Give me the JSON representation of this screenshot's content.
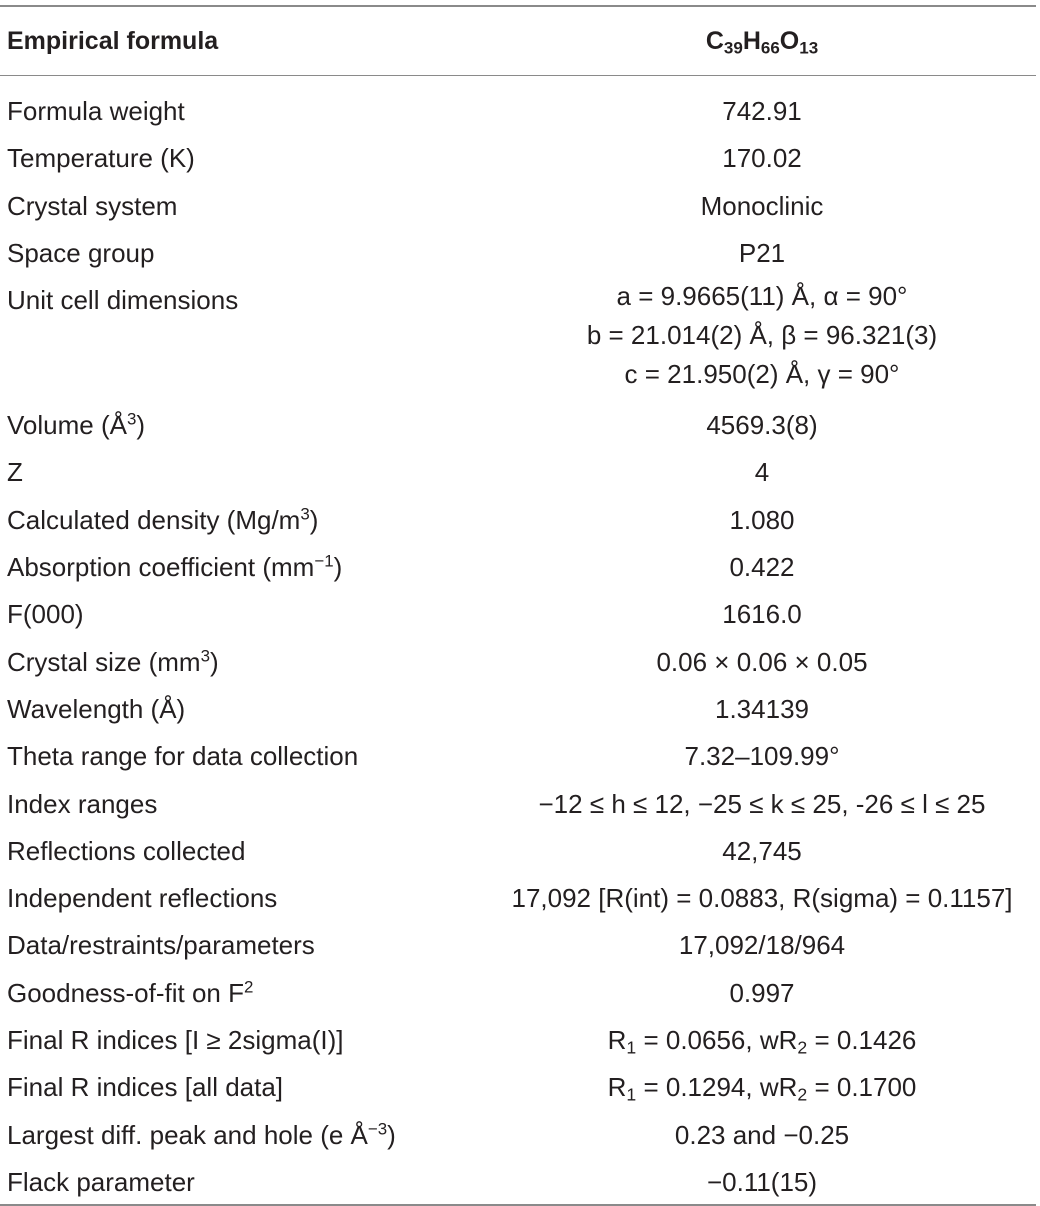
{
  "header": {
    "label": "Empirical formula",
    "formula": [
      "C",
      "39",
      "H",
      "66",
      "O",
      "13"
    ]
  },
  "rows": [
    {
      "label": "Formula weight",
      "value": "742.91"
    },
    {
      "label": "Temperature (K)",
      "value": "170.02"
    },
    {
      "label": "Crystal system",
      "value": "Monoclinic"
    },
    {
      "label": "Space group",
      "value": "P21"
    },
    {
      "label": "Unit cell dimensions",
      "lines": [
        "a = 9.9665(11) Å, α = 90°",
        "b = 21.014(2) Å, β = 96.321(3)",
        "c = 21.950(2) Å, γ = 90°"
      ]
    },
    {
      "label": "Volume (Å",
      "label_sup": "3",
      "label_tail": ")",
      "value": "4569.3(8)"
    },
    {
      "label": "Z",
      "value": "4"
    },
    {
      "label": "Calculated density (Mg/m",
      "label_sup": "3",
      "label_tail": ")",
      "value": "1.080"
    },
    {
      "label": "Absorption coefficient (mm",
      "label_sup": "−1",
      "label_tail": ")",
      "value": "0.422"
    },
    {
      "label": "F(000)",
      "value": "1616.0"
    },
    {
      "label": "Crystal size (mm",
      "label_sup": "3",
      "label_tail": ")",
      "value": "0.06 × 0.06 × 0.05"
    },
    {
      "label": "Wavelength (Å)",
      "value": "1.34139"
    },
    {
      "label": "Theta range for data collection",
      "value": "7.32–109.99°"
    },
    {
      "label": "Index ranges",
      "value": "−12 ≤ h ≤ 12, −25 ≤ k ≤ 25, -26 ≤ l ≤ 25"
    },
    {
      "label": "Reflections collected",
      "value": "42,745"
    },
    {
      "label": "Independent reflections",
      "value": "17,092 [R(int) = 0.0883, R(sigma) = 0.1157]"
    },
    {
      "label": "Data/restraints/parameters",
      "value": "17,092/18/964"
    },
    {
      "label": "Goodness-of-fit on F",
      "label_sup": "2",
      "label_tail": "",
      "value": "0.997"
    },
    {
      "label": "Final R indices [I ≥ 2sigma(I)]",
      "value_parts": [
        "R",
        "1",
        " = 0.0656, wR",
        "2",
        " = 0.1426"
      ]
    },
    {
      "label": "Final R indices [all data]",
      "value_parts": [
        "R",
        "1",
        " = 0.1294, wR",
        "2",
        " = 0.1700"
      ]
    },
    {
      "label": "Largest diff. peak and hole (e Å",
      "label_sup": "−3",
      "label_tail": ")",
      "value": "0.23 and −0.25"
    },
    {
      "label": "Flack parameter",
      "value": "−0.11(15)"
    }
  ]
}
